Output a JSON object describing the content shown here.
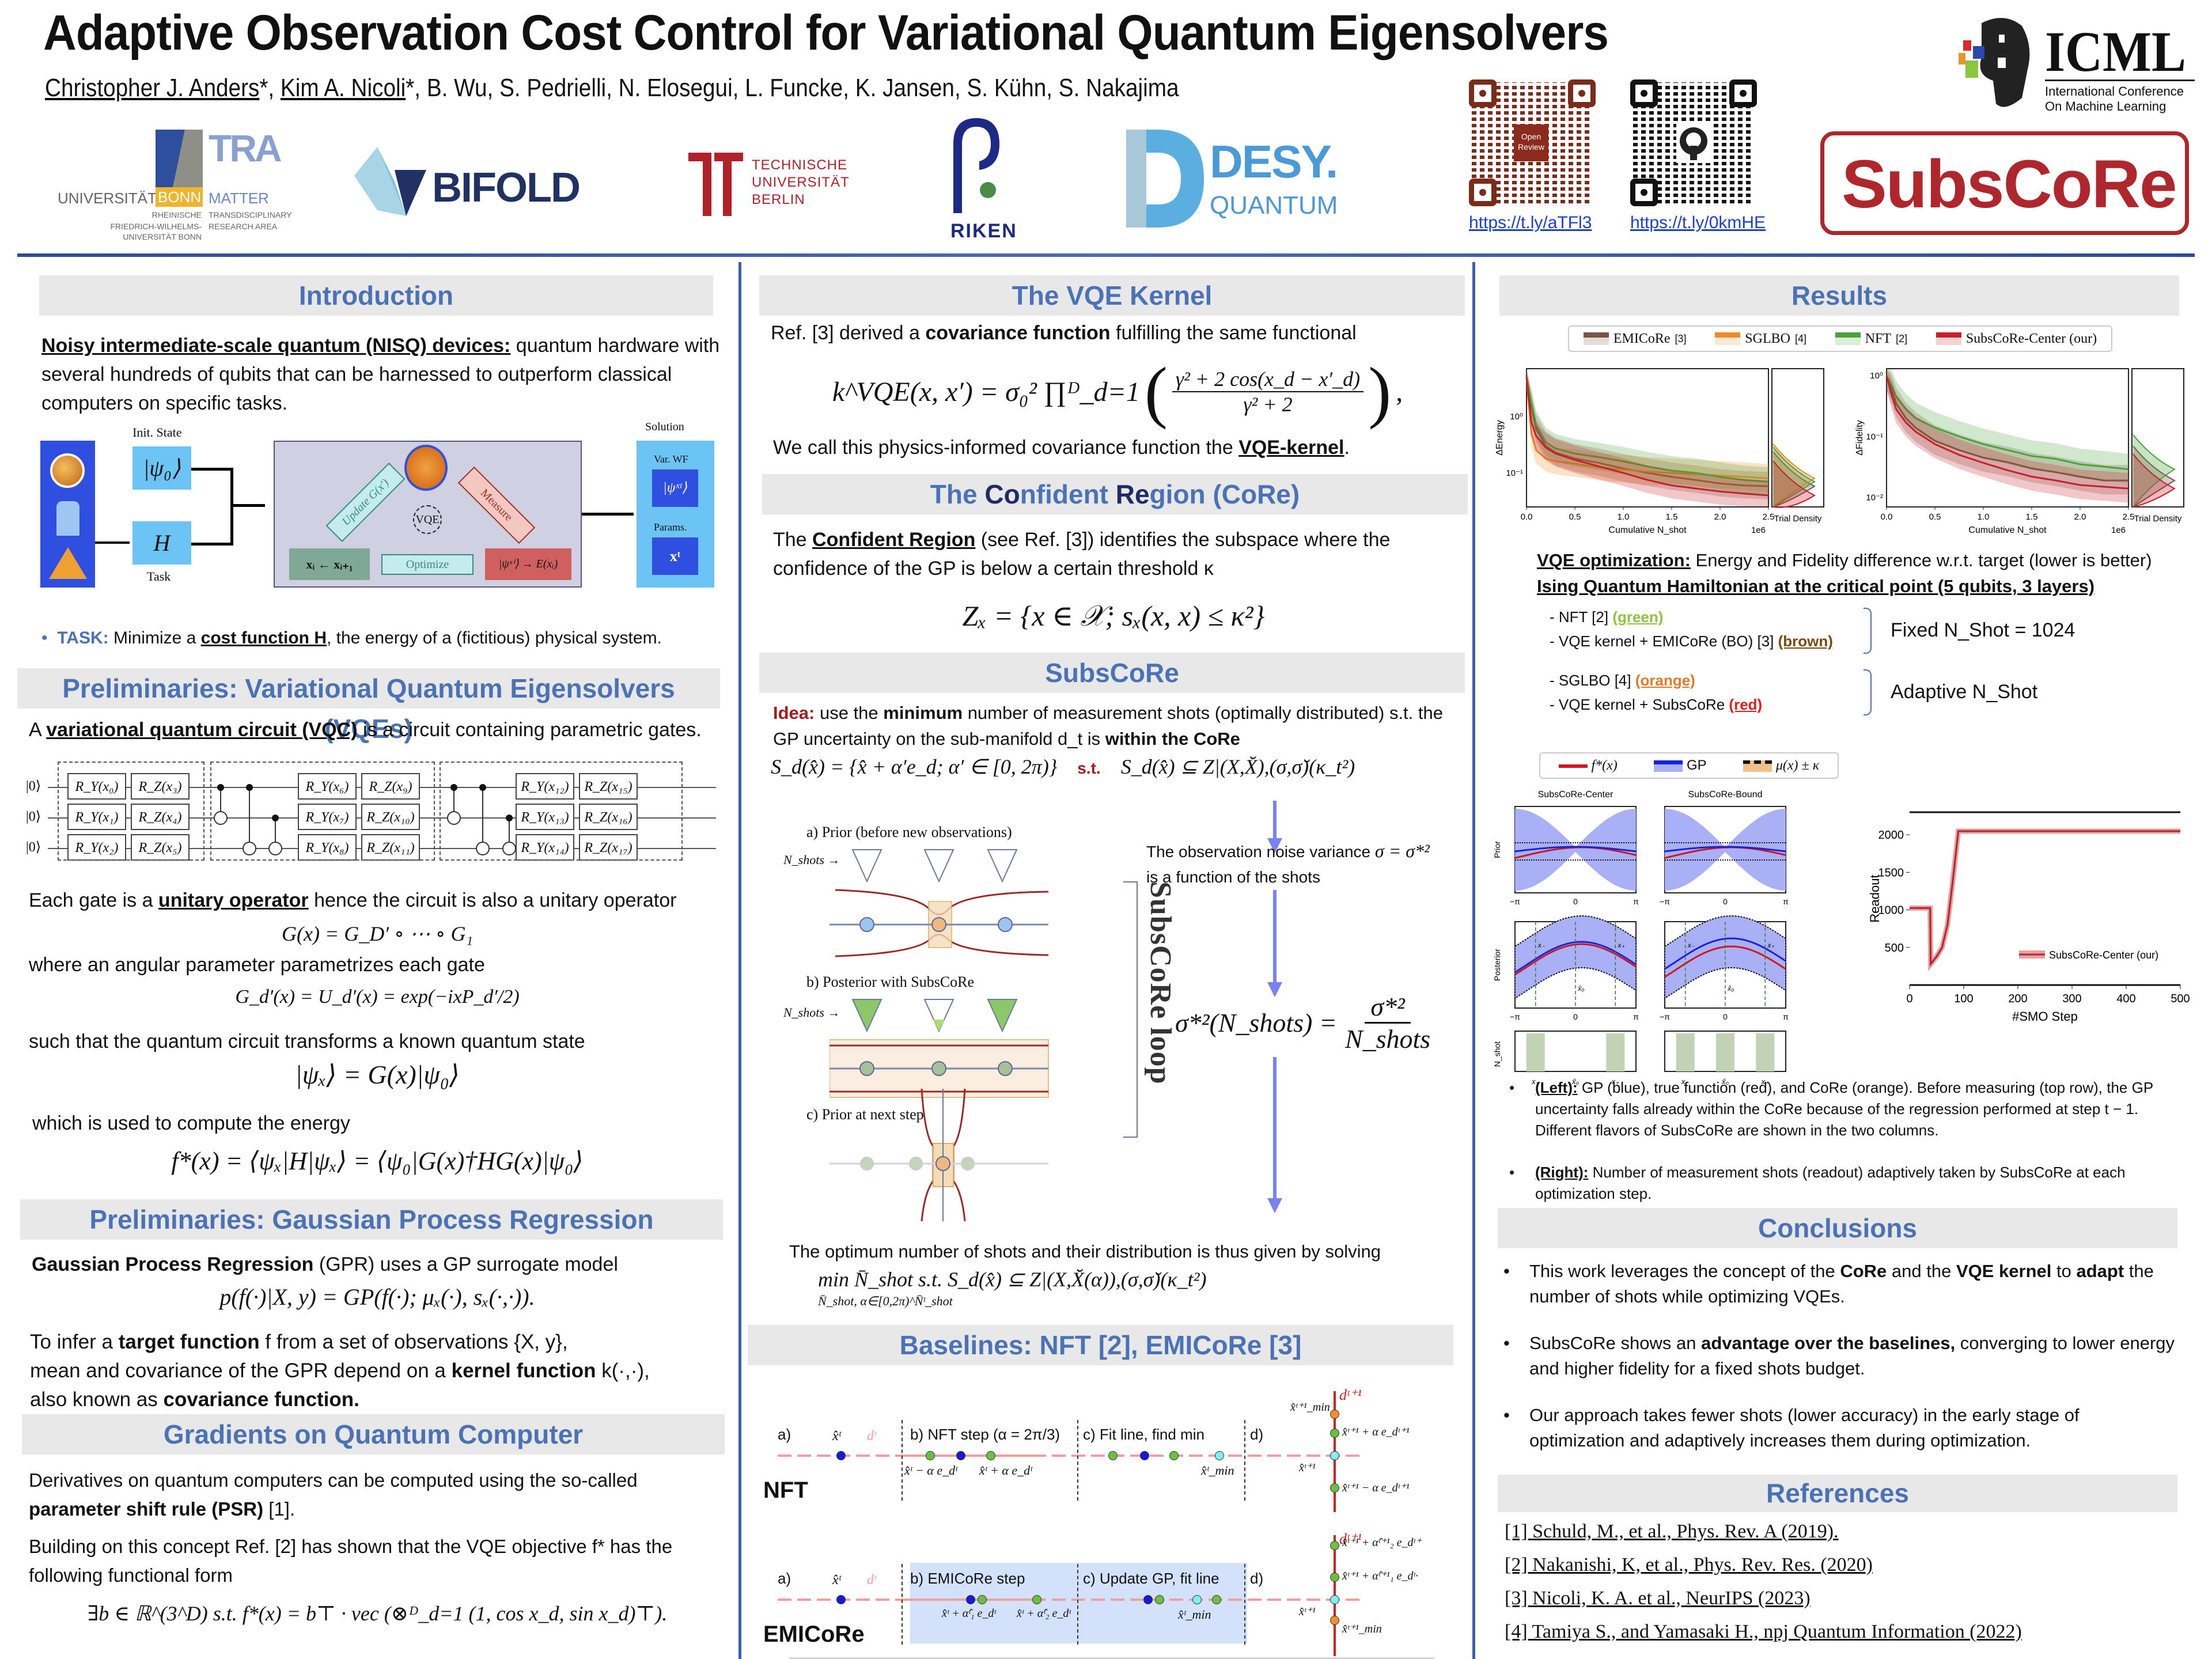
{
  "header": {
    "title": "Adaptive Observation Cost Control for Variational Quantum Eigensolvers",
    "authors": [
      {
        "name": "Christopher J. Anders",
        "underlined": true
      },
      {
        "name": "Kim A. Nicoli",
        "underlined": true
      },
      {
        "name": "B. Wu"
      },
      {
        "name": "S. Pedrielli"
      },
      {
        "name": "N. Elosegui"
      },
      {
        "name": "L. Funcke"
      },
      {
        "name": "K. Jansen"
      },
      {
        "name": "S. Kühn"
      },
      {
        "name": "S. Nakajima"
      }
    ],
    "author_sep": ", ",
    "star": "*",
    "logos": {
      "bonn": {
        "univ": "UNIVERSITÄT",
        "bonn": "BONN",
        "tra": "TRA",
        "matter": "MATTER",
        "sub1": "RHEINISCHE",
        "sub2": "FRIEDRICH-WILHELMS-",
        "sub3": "UNIVERSITÄT BONN",
        "sub4": "TRANSDISCIPLINARY",
        "sub5": "RESEARCH AREA"
      },
      "bifold": "BIFOLD",
      "tu": [
        "TECHNISCHE",
        "UNIVERSITÄT",
        "BERLIN"
      ],
      "riken": "RIKEN",
      "desy": {
        "name": "DESY.",
        "sub": "QUANTUM"
      },
      "icml": {
        "name": "ICML",
        "line1": "International Conference",
        "line2": "On Machine Learning"
      },
      "subscore": "SubsCoRe",
      "openreview": "Open Review"
    },
    "links": [
      "https://t.ly/aTFl3",
      "https://t.ly/0kmHE"
    ],
    "colors": {
      "accent_blue": "#4a72b4",
      "divider": "#3d5fb0",
      "brand_red": "#b0262d"
    }
  },
  "left": {
    "intro": {
      "heading": "Introduction",
      "nisq_lead": "Noisy intermediate-scale quantum (NISQ) devices:",
      "nisq_text": " quantum hardware with several hundreds of qubits that can be harnessed to outperform classical computers on specific tasks.",
      "diagram": {
        "init_state": "Init. State",
        "psi0": "|ψ₀⟩",
        "H": "H",
        "task": "Task",
        "vqe": "VQE",
        "update": "Update G(x′)",
        "measure": "Measure",
        "optimize": "Optimize",
        "xi": "xᵢ ← xᵢ₊₁",
        "energy": "|ψˣⁱ⟩ → E(xᵢ)",
        "solution": "Solution",
        "varwf": "Var. WF",
        "psit": "|ψˣᵗ⟩",
        "params": "Params.",
        "xt": "xᵗ"
      },
      "task_label": "TASK:",
      "task_text_1": " Minimize a ",
      "task_cost": "cost function H",
      "task_text_2": ", the energy of a (fictitious) physical system."
    },
    "vqe": {
      "heading": "Preliminaries: Variational Quantum Eigensolvers (VQEs)",
      "vqc_a": "A ",
      "vqc_bold": "variational quantum circuit  (VQC)",
      "vqc_rest": " is a circuit containing parametric gates.",
      "circuit": {
        "ket": "|0⟩",
        "gates": [
          [
            "R_Y(x₀)",
            "R_Z(x₃)",
            "R_Y(x₆)",
            "R_Z(x₉)",
            "R_Y(x₁₂)",
            "R_Z(x₁₅)"
          ],
          [
            "R_Y(x₁)",
            "R_Z(x₄)",
            "R_Y(x₇)",
            "R_Z(x₁₀)",
            "R_Y(x₁₃)",
            "R_Z(x₁₆)"
          ],
          [
            "R_Y(x₂)",
            "R_Z(x₅)",
            "R_Y(x₈)",
            "R_Z(x₁₁)",
            "R_Y(x₁₄)",
            "R_Z(x₁₇)"
          ]
        ]
      },
      "unitary_a": "Each gate is a ",
      "unitary_bold": "unitary operator",
      "unitary_rest": " hence the circuit is also a unitary operator",
      "eq_G": "G(x) = G_D′ ∘ ⋯ ∘ G₁",
      "angular": "where an angular parameter parametrizes each gate",
      "eq_Gd": "G_d′(x) = U_d′(x) = exp(−ixP_d′/2)",
      "transform": "such that the quantum circuit transforms a known quantum state",
      "eq_psi": "|ψₓ⟩ = G(x)|ψ₀⟩",
      "energy": "which is used to compute the energy",
      "eq_f": "f*(x) = ⟨ψₓ|H|ψₓ⟩ = ⟨ψ₀|G(x)†HG(x)|ψ₀⟩"
    },
    "gpr": {
      "heading": "Preliminaries: Gaussian Process Regression",
      "lead_bold": "Gaussian Process Regression",
      "lead_rest": " (GPR) uses a GP surrogate model",
      "eq": "p(f(·)|X, y) = GP(f(·); μₓ(·), sₓ(·,·)).",
      "infer_a": "To infer a ",
      "infer_bold": "target function",
      "infer_b": " f from a set of observations {X, y},",
      "mean_a": "mean and covariance of the GPR depend on a ",
      "mean_bold": "kernel function",
      "mean_b": " k(·,·),",
      "also_a": "also known as ",
      "also_bold": "covariance function."
    },
    "grad": {
      "heading": "Gradients on Quantum Computer",
      "deriv_a": "Derivatives on quantum computers can be computed using the so-called ",
      "deriv_bold": "parameter shift rule (PSR)",
      "deriv_b": " [1].",
      "build": "Building on this concept Ref. [2] has shown that the VQE objective f* has the following functional form",
      "eq": "∃b ∈ ℝ^(3^D)   s.t.   f*(x) = b⊤ · vec (⊗ᴰ_d=1 (1, cos x_d, sin x_d)⊤)."
    }
  },
  "middle": {
    "kernel": {
      "heading": "The VQE Kernel",
      "ref_a": "Ref. [3] derived a ",
      "ref_bold": "covariance function",
      "ref_b": " fulfilling the same functional",
      "eq_lhs": "k^VQE(x, x′) = σ₀² ∏ᴰ_d=1",
      "eq_num": "γ² + 2 cos(x_d − x′_d)",
      "eq_den": "γ² + 2",
      "call_a": "We call this physics-informed covariance function the ",
      "call_bold": "VQE-kernel",
      "call_b": "."
    },
    "core": {
      "heading_parts": [
        "The ",
        "Co",
        "nfident ",
        "Re",
        "gion (CoRe)"
      ],
      "text_a": "The ",
      "text_bold": "Confident Region",
      "text_b": " (see Ref. [3]) identifies the subspace where the confidence of the GP is below a certain threshold κ",
      "eq": "Zₓ = {x ∈ 𝒳; sₓ(x, x) ≤ κ²}"
    },
    "subscore": {
      "heading": "SubsCoRe",
      "idea": "Idea:",
      "idea_a": " use the ",
      "idea_bold": "minimum",
      "idea_b": " number of measurement shots (optimally distributed) s.t. the GP uncertainty on the sub-manifold d_t is ",
      "idea_bold2": "within the CoRe",
      "eq_left": "S_d(x̂) = {x̂ + α′e_d; α′ ∈ [0, 2π)}",
      "eq_st": "s.t.",
      "eq_right": "S_d(x̂) ⊆ Z|(X,X̆),(σ,σ̆)(κ_t²)",
      "panel_a": "a) Prior (before new observations)",
      "panel_b": "b) Posterior with SubsCoRe",
      "panel_c": "c) Prior at next step",
      "nshots": "N_shots →",
      "loop": "SubsCoRe loop",
      "noise_a": "The observation noise variance ",
      "noise_eq": "σ = σ*²",
      "noise_b": "is a function of the shots",
      "eq_sigma_lhs": "σ*²(N_shots) =",
      "eq_sigma_num": "σ*²",
      "eq_sigma_den": "N_shots",
      "optimum": "The optimum number of shots and their distribution is thus given by solving",
      "eq_min": "min N̄_shot s.t. S_d(x̂) ⊆ Z|(X,X̆(α)),(σ,σ̆)(κ_t²)",
      "eq_min_sub": "N̄_shot, α∈[0,2π)^N̄ᵗ_shot",
      "diagram_labels": {
        "xm": "x₋",
        "xp": "x₊",
        "xh": "x̂ᵗ⁻¹",
        "dt": "d_t",
        "zero": "0",
        "twopi": "2π",
        "dt1": "d_t+1",
        "xt": "x̂ᵗ"
      }
    },
    "baselines": {
      "heading": "Baselines: NFT [2], EMICoRe [3]",
      "nft": {
        "name": "NFT",
        "a": "a)",
        "b": "b) NFT step (α = 2π/3)",
        "c": "c) Fit line, find min",
        "d": "d)",
        "xt": "x̂ᵗ",
        "dt": "dᵗ",
        "minus": "x̂ᵗ − α e_dᵗ",
        "plus": "x̂ᵗ + α e_dᵗ",
        "xmin": "x̂ᵗ_min",
        "dt1": "dᵗ⁺¹",
        "xmin1": "x̂ᵗ⁺¹_min",
        "plus1": "x̂ᵗ⁺¹ + α e_dᵗ⁺¹",
        "minus1": "x̂ᵗ⁺¹ − α e_dᵗ⁺¹",
        "xt1": "x̂ᵗ⁺¹"
      },
      "emicore": {
        "name": "EMICoRe",
        "a": "a)",
        "b": "b) EMICoRe step",
        "c": "c) Update GP, fit line",
        "d": "d)",
        "xt": "x̂ᵗ",
        "dt": "dᵗ",
        "p1": "x̂ᵗ + α̂ᵗ₁ e_dᵗ",
        "p2": "x̂ᵗ + α̂ᵗ₂ e_dᵗ",
        "xmin": "x̂ᵗ_min",
        "dt1": "dᵗ⁺¹",
        "q2": "x̂ᵗ⁺¹ + α̂ᵗ⁺¹₂ e_dᵗ⁺",
        "q1": "x̂ᵗ⁺¹ + α̂ᵗ⁺¹₁ e_dᵗ·",
        "xt1": "x̂ᵗ⁺¹",
        "xmin1": "x̂ᵗ⁺¹_min"
      }
    }
  },
  "right": {
    "results": {
      "heading": "Results",
      "legend": [
        {
          "name": "EMICoRe",
          "ref": "[3]",
          "color": "#7b5248"
        },
        {
          "name": "SGLBO",
          "ref": "[4]",
          "color": "#f08a24"
        },
        {
          "name": "NFT",
          "ref": "[2]",
          "color": "#4aa33a"
        },
        {
          "name": "SubsCoRe-Center (our)",
          "ref": "",
          "color": "#c8202a"
        }
      ],
      "vqe_opt_bold": "VQE optimization:",
      "vqe_opt_rest": " Energy and Fidelity difference w.r.t. target (lower is better)",
      "ising": "Ising Quantum Hamiltonian at the critical point (5 qubits, 3 layers)",
      "fixed_items": [
        {
          "text": "- NFT [2] ",
          "tag": "(green)",
          "color": "#8fc43f"
        },
        {
          "text": "- VQE kernel + EMICoRe (BO) [3] ",
          "tag": "(brown)",
          "color": "#7a4a12"
        }
      ],
      "fixed_label": "Fixed N_Shot = 1024",
      "adaptive_items": [
        {
          "text": "- SGLBO [4] ",
          "tag": "(orange)",
          "color": "#e07b2c"
        },
        {
          "text": "- VQE kernel + SubsCoRe ",
          "tag": "(red)",
          "color": "#e0201c"
        }
      ],
      "adaptive_label": "Adaptive N_Shot",
      "gp_legend": [
        "f*(x)",
        "GP",
        "μ(x) ± κ"
      ],
      "gp_cols": [
        "SubsCoRe-Center",
        "SubsCoRe-Bound"
      ],
      "gp_rows": [
        "Prior",
        "Posterior",
        "N_shot"
      ],
      "gp_ticks": [
        "−π",
        "0",
        "π"
      ],
      "gp_ticks_bottom": [
        "x₋",
        "x̂₀",
        "x₊"
      ],
      "gp_labels": {
        "xm": "x₋",
        "xp": "x₊",
        "x0": "x̂₀"
      },
      "left_bold": "(Left):",
      "left_text": " GP (blue), true function (red), and CoRe (orange). Before measuring (top row), the GP uncertainty falls already within the CoRe because of the regression performed at step t − 1.  Different flavors of SubsCoRe are shown in the two columns.",
      "right_bold": "(Right):",
      "right_text": " Number of measurement shots (readout) adaptively taken by SubsCoRe at each optimization step."
    },
    "conclusions": {
      "heading": "Conclusions",
      "b1": [
        "This work leverages the concept of the ",
        "CoRe",
        " and the ",
        "VQE kernel",
        " to ",
        "adapt",
        " the number of shots while optimizing VQEs."
      ],
      "b2": [
        "SubsCoRe shows an ",
        "advantage over the baselines,",
        " converging to lower energy and higher fidelity for a fixed shots budget."
      ],
      "b3": "Our approach takes fewer shots (lower accuracy) in the early stage of optimization and adaptively increases them during optimization."
    },
    "references": {
      "heading": "References",
      "items": [
        "[1] Schuld, M., et al., Phys. Rev. A (2019).",
        "[2] Nakanishi, K, et al., Phys. Rev. Res. (2020)",
        "[3] Nicoli, K. A. et al., NeurIPS (2023)",
        "[4] Tamiya S., and Yamasaki H., npj Quantum Information (2022)"
      ]
    }
  },
  "chart_data": [
    {
      "type": "line",
      "title": "",
      "xlabel": "Cumulative N_shot",
      "x_offset_label": "1e6",
      "ylabel": "ΔEnergy",
      "yscale": "log",
      "xlim": [
        0,
        2.5
      ],
      "ylim": [
        0.025,
        7
      ],
      "x_ticks": [
        "0.0",
        "0.5",
        "1.0",
        "1.5",
        "2.0",
        "2.5"
      ],
      "y_ticks": [
        "10⁻¹",
        "10⁰"
      ],
      "side_panel": "Trial Density",
      "x": [
        0,
        0.05,
        0.1,
        0.2,
        0.3,
        0.5,
        0.75,
        1.0,
        1.25,
        1.5,
        1.75,
        2.0,
        2.25,
        2.5
      ],
      "series": [
        {
          "name": "EMICoRe [3]",
          "values": [
            5,
            1.5,
            0.6,
            0.3,
            0.23,
            0.18,
            0.15,
            0.12,
            0.1,
            0.085,
            0.075,
            0.065,
            0.06,
            0.058
          ]
        },
        {
          "name": "SGLBO [4]",
          "values": [
            5,
            0.5,
            0.25,
            0.18,
            0.16,
            0.145,
            0.125,
            0.115,
            0.105,
            0.1,
            0.095,
            0.09,
            0.085,
            0.08
          ]
        },
        {
          "name": "NFT [2]",
          "values": [
            5,
            1.8,
            0.7,
            0.35,
            0.27,
            0.22,
            0.19,
            0.16,
            0.13,
            0.11,
            0.1,
            0.085,
            0.075,
            0.07
          ]
        },
        {
          "name": "SubsCoRe-Center (our)",
          "values": [
            5,
            0.8,
            0.45,
            0.28,
            0.22,
            0.17,
            0.13,
            0.1,
            0.075,
            0.06,
            0.053,
            0.047,
            0.043,
            0.04
          ]
        }
      ]
    },
    {
      "type": "line",
      "title": "",
      "xlabel": "Cumulative N_shot",
      "x_offset_label": "1e6",
      "ylabel": "ΔFidelity",
      "yscale": "log",
      "xlim": [
        0,
        2.5
      ],
      "ylim": [
        0.007,
        1.3
      ],
      "x_ticks": [
        "0.0",
        "0.5",
        "1.0",
        "1.5",
        "2.0",
        "2.5"
      ],
      "y_ticks": [
        "10⁻²",
        "10⁻¹",
        "10⁰"
      ],
      "side_panel": "Trial Density",
      "x": [
        0,
        0.05,
        0.1,
        0.2,
        0.3,
        0.5,
        0.75,
        1.0,
        1.25,
        1.5,
        1.75,
        2.0,
        2.25,
        2.5
      ],
      "series": [
        {
          "name": "EMICoRe [3]",
          "values": [
            1,
            0.6,
            0.35,
            0.2,
            0.14,
            0.085,
            0.06,
            0.045,
            0.038,
            0.03,
            0.026,
            0.022,
            0.019,
            0.019
          ]
        },
        {
          "name": "NFT [2]",
          "values": [
            1,
            0.7,
            0.45,
            0.28,
            0.2,
            0.14,
            0.1,
            0.075,
            0.06,
            0.048,
            0.043,
            0.035,
            0.032,
            0.029
          ]
        },
        {
          "name": "SubsCoRe-Center (our)",
          "values": [
            1,
            0.5,
            0.28,
            0.17,
            0.12,
            0.075,
            0.05,
            0.037,
            0.028,
            0.022,
            0.019,
            0.016,
            0.015,
            0.014
          ]
        }
      ]
    },
    {
      "type": "line",
      "title": "",
      "xlabel": "#SMO Step",
      "ylabel": "Readout",
      "xlim": [
        0,
        500
      ],
      "ylim": [
        0,
        2300
      ],
      "x_ticks": [
        "0",
        "100",
        "200",
        "300",
        "400",
        "500"
      ],
      "y_ticks": [
        "500",
        "1000",
        "1500",
        "2000"
      ],
      "x": [
        0,
        38,
        39,
        50,
        60,
        70,
        80,
        90,
        100,
        200,
        300,
        400,
        500
      ],
      "series": [
        {
          "name": "SubsCoRe-Center (our)",
          "values": [
            1024,
            1024,
            280,
            380,
            500,
            800,
            1400,
            2048,
            2048,
            2048,
            2048,
            2048,
            2048
          ]
        }
      ]
    }
  ]
}
